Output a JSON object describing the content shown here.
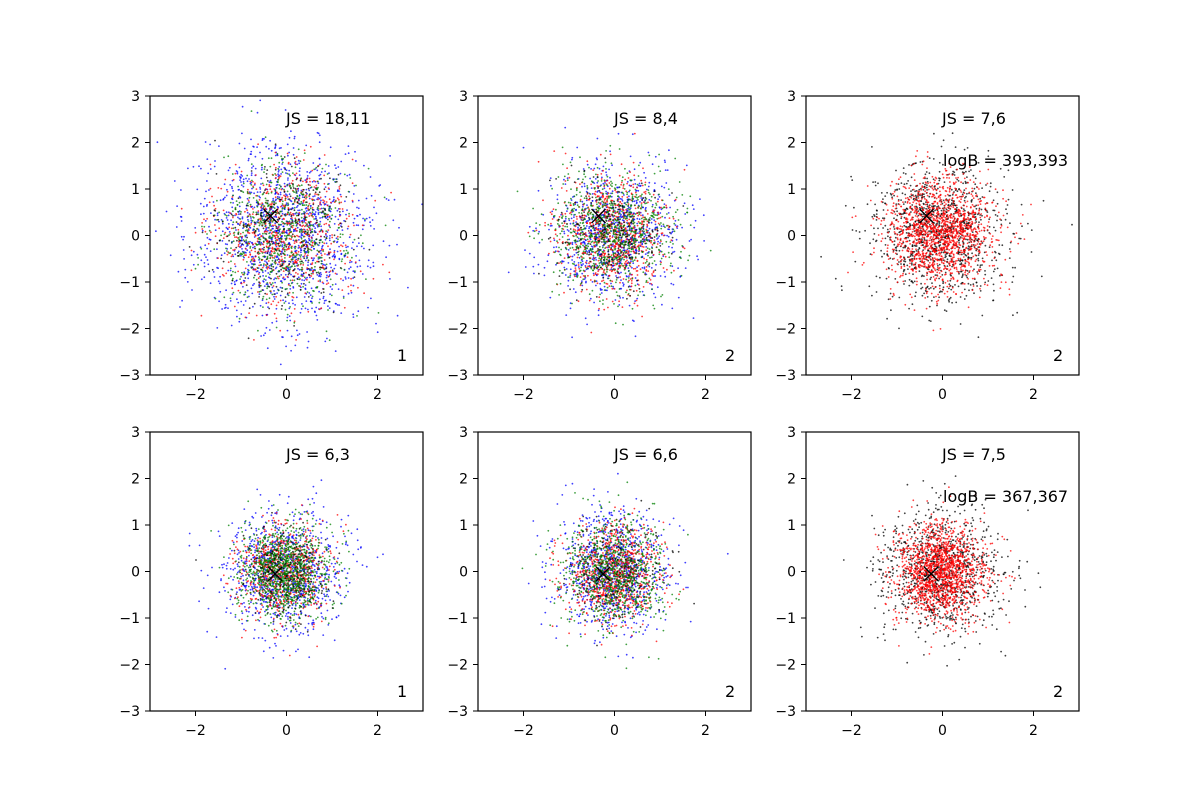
{
  "chart_data": [
    {
      "type": "scatter",
      "xlim": [
        -3,
        3
      ],
      "ylim": [
        -3,
        3
      ],
      "xticks": [
        -2,
        0,
        2
      ],
      "yticks": [
        -3,
        -2,
        -1,
        0,
        1,
        2,
        3
      ],
      "xtick_labels": [
        "−2",
        "0",
        "2"
      ],
      "ytick_labels": [
        "−3",
        "−2",
        "−1",
        "0",
        "1",
        "2",
        "3"
      ],
      "js_label": "JS = 18,11",
      "logb_label": "",
      "corner_label": "1",
      "marker": {
        "x": -0.35,
        "y": 0.42,
        "symbol": "x",
        "color": "#000000"
      },
      "series": [
        {
          "color": "#0000ff",
          "count": 1300,
          "spread": 0.95
        },
        {
          "color": "#ff0000",
          "count": 700,
          "spread": 0.75
        },
        {
          "color": "#008000",
          "count": 700,
          "spread": 0.75
        },
        {
          "color": "#000000",
          "count": 250,
          "spread": 0.8
        }
      ],
      "grid": false
    },
    {
      "type": "scatter",
      "xlim": [
        -3,
        3
      ],
      "ylim": [
        -3,
        3
      ],
      "xticks": [
        -2,
        0,
        2
      ],
      "yticks": [
        -3,
        -2,
        -1,
        0,
        1,
        2,
        3
      ],
      "xtick_labels": [
        "−2",
        "0",
        "2"
      ],
      "ytick_labels": [
        "−3",
        "−2",
        "−1",
        "0",
        "1",
        "2",
        "3"
      ],
      "js_label": "JS = 8,4",
      "logb_label": "",
      "corner_label": "2",
      "marker": {
        "x": -0.35,
        "y": 0.42,
        "symbol": "x",
        "color": "#000000"
      },
      "series": [
        {
          "color": "#0000ff",
          "count": 900,
          "spread": 0.7
        },
        {
          "color": "#ff0000",
          "count": 800,
          "spread": 0.6
        },
        {
          "color": "#008000",
          "count": 900,
          "spread": 0.65
        },
        {
          "color": "#000000",
          "count": 200,
          "spread": 0.6
        }
      ],
      "grid": false
    },
    {
      "type": "scatter",
      "xlim": [
        -3,
        3
      ],
      "ylim": [
        -3,
        3
      ],
      "xticks": [
        -2,
        0,
        2
      ],
      "yticks": [
        -3,
        -2,
        -1,
        0,
        1,
        2,
        3
      ],
      "xtick_labels": [
        "−2",
        "0",
        "2"
      ],
      "ytick_labels": [
        "−3",
        "−2",
        "−1",
        "0",
        "1",
        "2",
        "3"
      ],
      "js_label": "JS = 7,6",
      "logb_label": "logB = 393,393",
      "corner_label": "2",
      "marker": {
        "x": -0.35,
        "y": 0.42,
        "symbol": "x",
        "color": "#000000"
      },
      "series": [
        {
          "color": "#000000",
          "count": 1100,
          "spread": 0.72
        },
        {
          "color": "#ff0000",
          "count": 1500,
          "spread": 0.6
        }
      ],
      "grid": false
    },
    {
      "type": "scatter",
      "xlim": [
        -3,
        3
      ],
      "ylim": [
        -3,
        3
      ],
      "xticks": [
        -2,
        0,
        2
      ],
      "yticks": [
        -3,
        -2,
        -1,
        0,
        1,
        2,
        3
      ],
      "xtick_labels": [
        "−2",
        "0",
        "2"
      ],
      "ytick_labels": [
        "−3",
        "−2",
        "−1",
        "0",
        "1",
        "2",
        "3"
      ],
      "js_label": "JS = 6,3",
      "logb_label": "",
      "corner_label": "1",
      "marker": {
        "x": -0.25,
        "y": -0.05,
        "symbol": "x",
        "color": "#000000"
      },
      "series": [
        {
          "color": "#0000ff",
          "count": 900,
          "spread": 0.65
        },
        {
          "color": "#ff0000",
          "count": 700,
          "spread": 0.5
        },
        {
          "color": "#008000",
          "count": 1100,
          "spread": 0.5
        },
        {
          "color": "#000000",
          "count": 200,
          "spread": 0.5
        }
      ],
      "grid": false
    },
    {
      "type": "scatter",
      "xlim": [
        -3,
        3
      ],
      "ylim": [
        -3,
        3
      ],
      "xticks": [
        -2,
        0,
        2
      ],
      "yticks": [
        -3,
        -2,
        -1,
        0,
        1,
        2,
        3
      ],
      "xtick_labels": [
        "−2",
        "0",
        "2"
      ],
      "ytick_labels": [
        "−3",
        "−2",
        "−1",
        "0",
        "1",
        "2",
        "3"
      ],
      "js_label": "JS = 6,6",
      "logb_label": "",
      "corner_label": "2",
      "marker": {
        "x": -0.25,
        "y": -0.05,
        "symbol": "x",
        "color": "#000000"
      },
      "series": [
        {
          "color": "#0000ff",
          "count": 900,
          "spread": 0.62
        },
        {
          "color": "#ff0000",
          "count": 800,
          "spread": 0.52
        },
        {
          "color": "#008000",
          "count": 900,
          "spread": 0.55
        },
        {
          "color": "#000000",
          "count": 200,
          "spread": 0.55
        }
      ],
      "grid": false
    },
    {
      "type": "scatter",
      "xlim": [
        -3,
        3
      ],
      "ylim": [
        -3,
        3
      ],
      "xticks": [
        -2,
        0,
        2
      ],
      "yticks": [
        -3,
        -2,
        -1,
        0,
        1,
        2,
        3
      ],
      "xtick_labels": [
        "−2",
        "0",
        "2"
      ],
      "ytick_labels": [
        "−3",
        "−2",
        "−1",
        "0",
        "1",
        "2",
        "3"
      ],
      "js_label": "JS = 7,5",
      "logb_label": "logB = 367,367",
      "corner_label": "2",
      "marker": {
        "x": -0.25,
        "y": -0.05,
        "symbol": "x",
        "color": "#000000"
      },
      "series": [
        {
          "color": "#000000",
          "count": 1000,
          "spread": 0.65
        },
        {
          "color": "#ff0000",
          "count": 1500,
          "spread": 0.5
        }
      ],
      "grid": false
    }
  ]
}
